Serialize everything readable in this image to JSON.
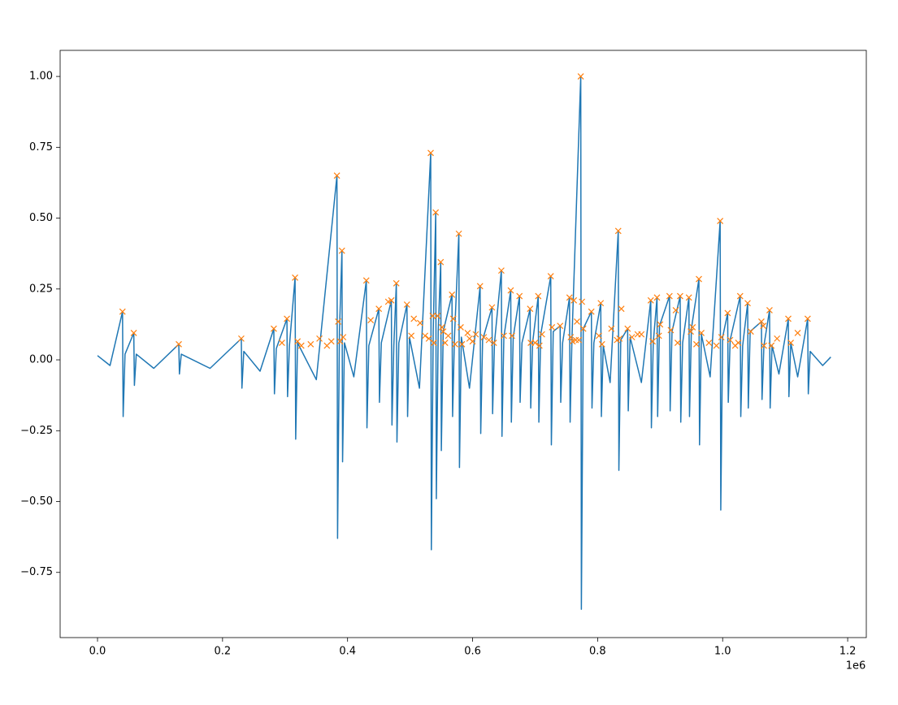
{
  "chart_data": {
    "type": "line",
    "xlim": [
      -59800,
      1229800
    ],
    "ylim": [
      -0.98,
      1.092
    ],
    "xticks": [
      {
        "value": 0,
        "label": "0.0"
      },
      {
        "value": 200000,
        "label": "0.2"
      },
      {
        "value": 400000,
        "label": "0.4"
      },
      {
        "value": 600000,
        "label": "0.6"
      },
      {
        "value": 800000,
        "label": "0.8"
      },
      {
        "value": 1000000,
        "label": "1.0"
      },
      {
        "value": 1200000,
        "label": "1.2"
      }
    ],
    "x_offset_label": "1e6",
    "yticks": [
      {
        "value": -0.75,
        "label": "−0.75"
      },
      {
        "value": -0.5,
        "label": "−0.50"
      },
      {
        "value": -0.25,
        "label": "−0.25"
      },
      {
        "value": 0,
        "label": "0.00"
      },
      {
        "value": 0.25,
        "label": "0.25"
      },
      {
        "value": 0.5,
        "label": "0.50"
      },
      {
        "value": 0.75,
        "label": "0.75"
      },
      {
        "value": 1,
        "label": "1.00"
      }
    ],
    "grid": false,
    "series": [
      {
        "color": "#1f77b4",
        "marker": "none",
        "x": [
          0,
          20000,
          40000,
          41000,
          44000,
          58000,
          59000,
          62000,
          90000,
          130000,
          131000,
          134000,
          180000,
          230000,
          231000,
          234000,
          260000,
          282000,
          283000,
          286000,
          303000,
          304000,
          307000,
          316000,
          317000,
          320000,
          350000,
          383000,
          384000,
          387000,
          391000,
          392000,
          395000,
          410000,
          430000,
          431000,
          434000,
          450000,
          451000,
          454000,
          470000,
          471000,
          474000,
          478000,
          479000,
          482000,
          495000,
          496000,
          499000,
          515000,
          533000,
          534000,
          537000,
          541000,
          542000,
          545000,
          549000,
          550000,
          553000,
          567000,
          568000,
          571000,
          578000,
          579000,
          582000,
          595000,
          612000,
          613000,
          616000,
          631000,
          632000,
          635000,
          646000,
          647000,
          650000,
          661000,
          662000,
          665000,
          675000,
          676000,
          679000,
          692000,
          693000,
          696000,
          705000,
          706000,
          709000,
          725000,
          726000,
          729000,
          740000,
          741000,
          744000,
          755000,
          756000,
          759000,
          773000,
          774000,
          777000,
          790000,
          791000,
          794000,
          805000,
          806000,
          809000,
          820000,
          833000,
          834000,
          837000,
          848000,
          849000,
          852000,
          870000,
          885000,
          886000,
          889000,
          895000,
          896000,
          899000,
          915000,
          916000,
          919000,
          932000,
          933000,
          936000,
          946000,
          947000,
          950000,
          962000,
          963000,
          966000,
          980000,
          996000,
          997000,
          1000000,
          1008000,
          1009000,
          1012000,
          1028000,
          1029000,
          1032000,
          1040000,
          1041000,
          1044000,
          1062000,
          1063000,
          1066000,
          1075000,
          1076000,
          1079000,
          1090000,
          1105000,
          1106000,
          1109000,
          1120000,
          1136000,
          1137000,
          1140000,
          1160000,
          1173000
        ],
        "values": [
          0.015,
          -0.02,
          0.17,
          -0.2,
          0.02,
          0.095,
          -0.09,
          0.02,
          -0.03,
          0.055,
          -0.05,
          0.02,
          -0.03,
          0.075,
          -0.1,
          0.03,
          -0.04,
          0.11,
          -0.12,
          0.04,
          0.145,
          -0.13,
          0.05,
          0.29,
          -0.28,
          0.06,
          -0.07,
          0.65,
          -0.63,
          0.1,
          0.385,
          -0.36,
          0.06,
          -0.06,
          0.28,
          -0.24,
          0.05,
          0.18,
          -0.15,
          0.06,
          0.21,
          -0.23,
          0.05,
          0.27,
          -0.29,
          0.06,
          0.195,
          -0.2,
          0.08,
          -0.1,
          0.73,
          -0.67,
          0.1,
          0.52,
          -0.49,
          0.1,
          0.345,
          -0.32,
          0.1,
          0.23,
          -0.2,
          0.08,
          0.445,
          -0.38,
          0.08,
          -0.1,
          0.26,
          -0.26,
          0.07,
          0.185,
          -0.19,
          0.06,
          0.315,
          -0.27,
          0.08,
          0.245,
          -0.22,
          0.08,
          0.225,
          -0.15,
          0.06,
          0.18,
          -0.17,
          0.06,
          0.225,
          -0.22,
          0.09,
          0.295,
          -0.3,
          0.1,
          0.12,
          -0.15,
          0.06,
          0.22,
          -0.22,
          0.08,
          1.0,
          -0.88,
          0.11,
          0.17,
          -0.17,
          0.06,
          0.2,
          -0.2,
          0.05,
          -0.08,
          0.455,
          -0.39,
          0.07,
          0.11,
          -0.18,
          0.08,
          -0.08,
          0.21,
          -0.24,
          0.06,
          0.22,
          -0.2,
          0.12,
          0.225,
          -0.18,
          0.1,
          0.225,
          -0.22,
          0.06,
          0.22,
          -0.2,
          0.11,
          0.285,
          -0.3,
          0.09,
          -0.06,
          0.49,
          -0.53,
          0.08,
          0.165,
          -0.15,
          0.07,
          0.225,
          -0.2,
          0.05,
          0.2,
          -0.17,
          0.1,
          0.135,
          -0.14,
          0.05,
          0.175,
          -0.17,
          0.05,
          -0.05,
          0.145,
          -0.13,
          0.06,
          -0.06,
          0.145,
          -0.12,
          0.03,
          -0.02,
          0.01
        ]
      },
      {
        "color": "#ff7f0e",
        "marker": "x",
        "x": [
          40000,
          58000,
          130000,
          230000,
          282000,
          295000,
          303000,
          316000,
          320000,
          326000,
          341000,
          355000,
          367000,
          374000,
          383000,
          385000,
          388000,
          391000,
          393000,
          430000,
          437000,
          450000,
          465000,
          470000,
          478000,
          495000,
          502000,
          506000,
          516000,
          524000,
          530000,
          533000,
          536000,
          538000,
          541000,
          544000,
          549000,
          551000,
          553000,
          556000,
          561000,
          567000,
          569000,
          572000,
          578000,
          581000,
          583000,
          592000,
          595000,
          600000,
          605000,
          612000,
          618000,
          626000,
          631000,
          634000,
          646000,
          650000,
          661000,
          663000,
          675000,
          692000,
          693000,
          700000,
          705000,
          707000,
          711000,
          725000,
          727000,
          740000,
          755000,
          757000,
          760000,
          762000,
          765000,
          767000,
          770000,
          773000,
          775000,
          777000,
          790000,
          802000,
          805000,
          807000,
          822000,
          831000,
          833000,
          835000,
          838000,
          848000,
          855000,
          864000,
          870000,
          885000,
          888000,
          895000,
          898000,
          900000,
          915000,
          917000,
          925000,
          928000,
          932000,
          946000,
          949000,
          952000,
          958000,
          962000,
          966000,
          978000,
          990000,
          996000,
          998000,
          1008000,
          1012000,
          1020000,
          1025000,
          1028000,
          1040000,
          1045000,
          1062000,
          1065000,
          1066000,
          1075000,
          1078000,
          1087000,
          1105000,
          1109000,
          1120000,
          1136000
        ],
        "values": [
          0.17,
          0.095,
          0.055,
          0.075,
          0.11,
          0.06,
          0.145,
          0.29,
          0.065,
          0.05,
          0.055,
          0.075,
          0.05,
          0.065,
          0.65,
          0.135,
          0.065,
          0.385,
          0.08,
          0.28,
          0.14,
          0.18,
          0.205,
          0.21,
          0.27,
          0.195,
          0.085,
          0.145,
          0.13,
          0.085,
          0.075,
          0.73,
          0.155,
          0.06,
          0.52,
          0.155,
          0.345,
          0.115,
          0.1,
          0.06,
          0.085,
          0.23,
          0.145,
          0.055,
          0.445,
          0.115,
          0.055,
          0.095,
          0.075,
          0.065,
          0.09,
          0.26,
          0.08,
          0.07,
          0.185,
          0.06,
          0.315,
          0.085,
          0.245,
          0.085,
          0.225,
          0.18,
          0.06,
          0.06,
          0.225,
          0.05,
          0.09,
          0.295,
          0.115,
          0.12,
          0.22,
          0.08,
          0.065,
          0.21,
          0.07,
          0.135,
          0.07,
          1.0,
          0.205,
          0.11,
          0.17,
          0.085,
          0.2,
          0.055,
          0.11,
          0.07,
          0.455,
          0.075,
          0.18,
          0.11,
          0.08,
          0.09,
          0.09,
          0.21,
          0.065,
          0.22,
          0.085,
          0.125,
          0.225,
          0.105,
          0.175,
          0.06,
          0.225,
          0.22,
          0.1,
          0.115,
          0.055,
          0.285,
          0.095,
          0.06,
          0.05,
          0.49,
          0.08,
          0.165,
          0.07,
          0.05,
          0.06,
          0.225,
          0.2,
          0.1,
          0.135,
          0.12,
          0.05,
          0.175,
          0.05,
          0.075,
          0.145,
          0.06,
          0.095,
          0.145
        ]
      }
    ]
  }
}
